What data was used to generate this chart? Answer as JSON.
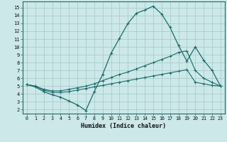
{
  "bg_color": "#cce8e8",
  "line_color": "#1a6b6b",
  "grid_color": "#aacccc",
  "xlabel": "Humidex (Indice chaleur)",
  "xlim": [
    -0.5,
    23.5
  ],
  "ylim": [
    1.5,
    15.8
  ],
  "xticks": [
    0,
    1,
    2,
    3,
    4,
    5,
    6,
    7,
    8,
    9,
    10,
    11,
    12,
    13,
    14,
    15,
    16,
    17,
    18,
    19,
    20,
    21,
    22,
    23
  ],
  "yticks": [
    2,
    3,
    4,
    5,
    6,
    7,
    8,
    9,
    10,
    11,
    12,
    13,
    14,
    15
  ],
  "y_main": [
    5.2,
    4.9,
    4.3,
    3.9,
    3.6,
    3.1,
    2.6,
    1.9,
    4.3,
    6.5,
    9.2,
    11.1,
    13.0,
    14.3,
    14.7,
    15.2,
    14.2,
    12.5,
    10.2,
    8.2,
    10.0,
    8.3,
    7.0,
    5.0
  ],
  "y_line2": [
    5.2,
    5.0,
    4.6,
    4.4,
    4.4,
    4.6,
    4.8,
    5.0,
    5.3,
    5.7,
    6.1,
    6.5,
    6.8,
    7.2,
    7.6,
    8.0,
    8.4,
    8.8,
    9.3,
    9.5,
    7.0,
    6.0,
    5.5,
    5.0
  ],
  "y_line3": [
    5.2,
    5.0,
    4.5,
    4.2,
    4.2,
    4.3,
    4.5,
    4.7,
    4.9,
    5.1,
    5.3,
    5.5,
    5.7,
    5.9,
    6.1,
    6.3,
    6.5,
    6.7,
    6.9,
    7.1,
    5.5,
    5.3,
    5.1,
    5.0
  ]
}
